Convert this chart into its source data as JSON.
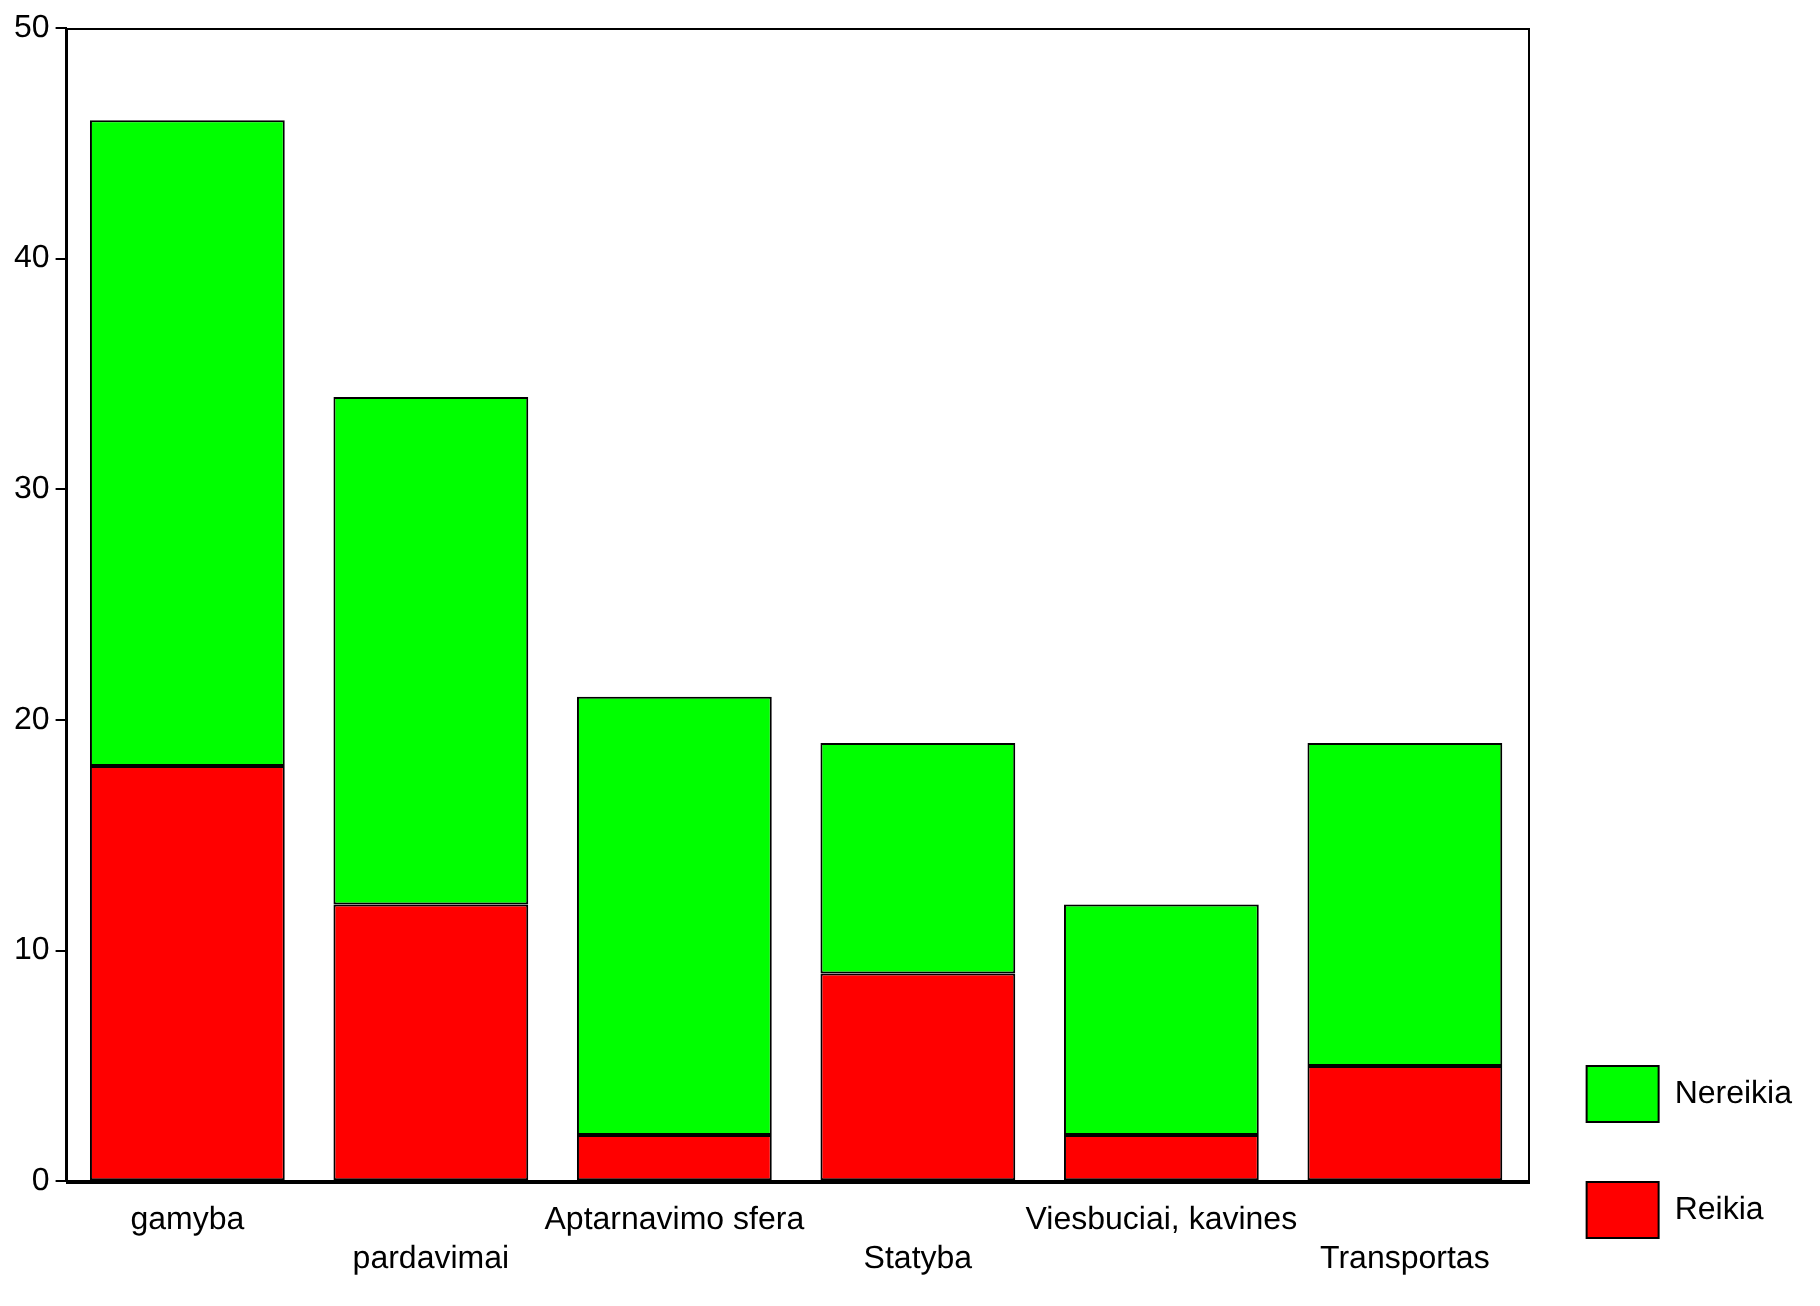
{
  "chart_data": {
    "type": "bar",
    "stacked": true,
    "categories": [
      "gamyba",
      "pardavimai",
      "Aptarnavimo sfera",
      "Statyba",
      "Viesbuciai, kavines",
      "Transportas"
    ],
    "series": [
      {
        "name": "Reikia",
        "color": "#ff0000",
        "values": [
          18,
          12,
          2,
          9,
          2,
          5
        ]
      },
      {
        "name": "Nereikia",
        "color": "#00ff00",
        "values": [
          28,
          22,
          19,
          10,
          10,
          14
        ]
      }
    ],
    "ylim": [
      0,
      50
    ],
    "yticks": [
      0,
      10,
      20,
      30,
      40,
      50
    ],
    "grid": false,
    "legend": "bottom right"
  }
}
